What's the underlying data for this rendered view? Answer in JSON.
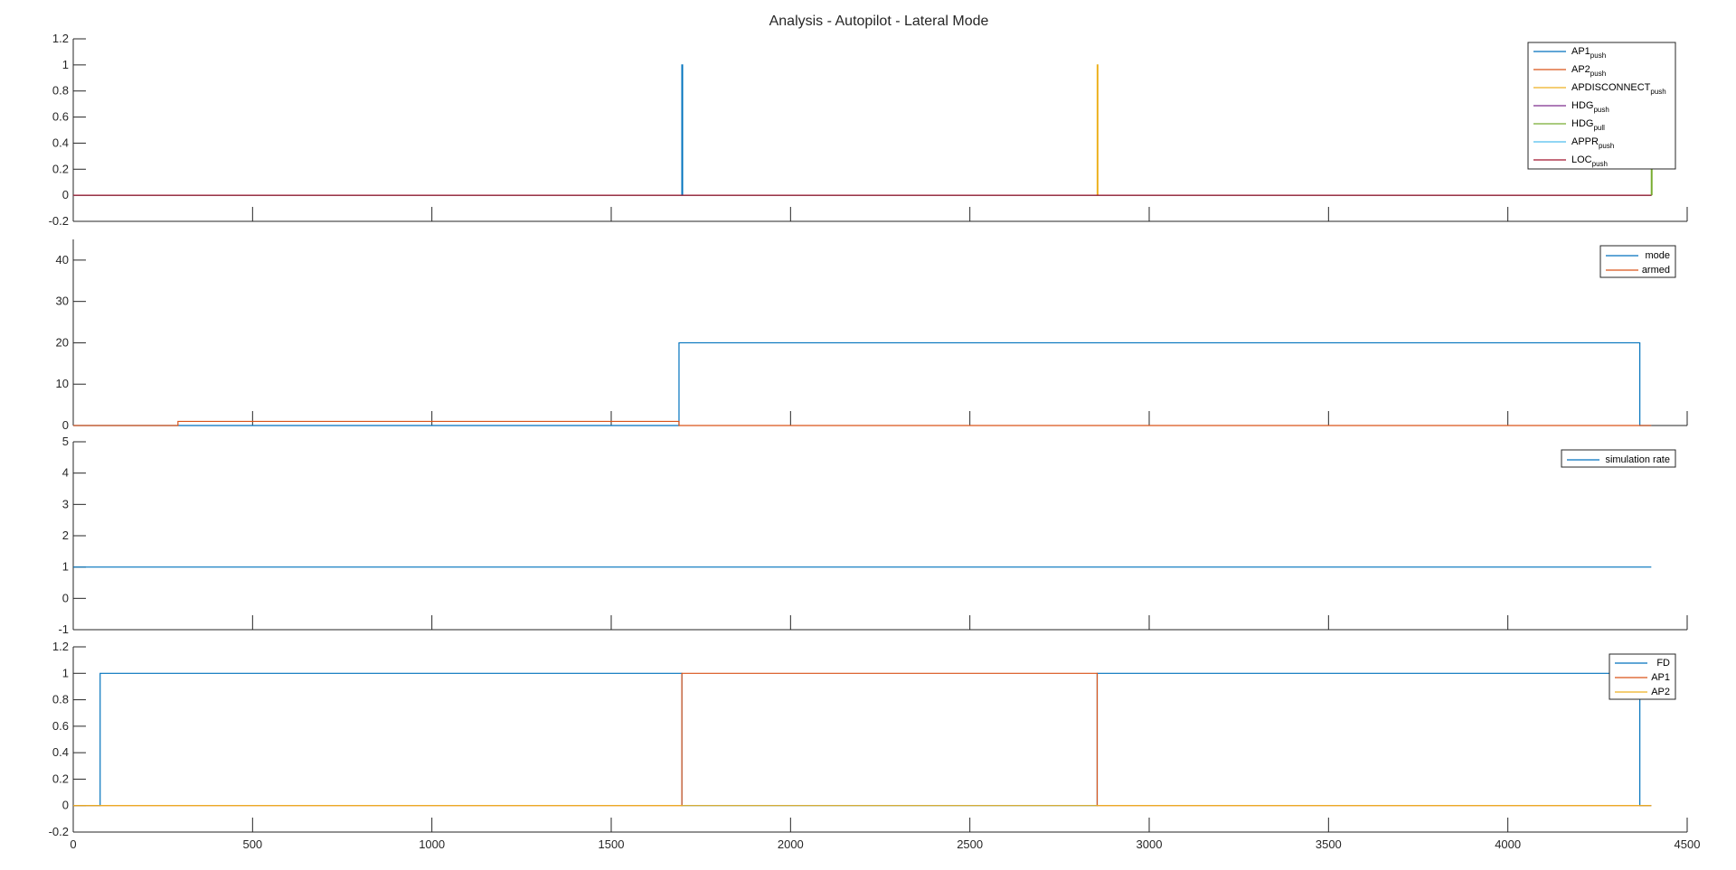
{
  "figure": {
    "title": "Analysis - Autopilot - Lateral Mode"
  },
  "chart_data": [
    {
      "type": "line",
      "xlim": [
        0,
        4500
      ],
      "ylim": [
        -0.2,
        1.2
      ],
      "yticks": [
        "-0.2",
        "0",
        "0.2",
        "0.4",
        "0.6",
        "0.8",
        "1",
        "1.2"
      ],
      "ytick_values": [
        -0.2,
        0,
        0.2,
        0.4,
        0.6,
        0.8,
        1,
        1.2
      ],
      "xticks": [
        0,
        500,
        1000,
        1500,
        2000,
        2500,
        3000,
        3500,
        4000,
        4500
      ],
      "show_xtick_labels": false,
      "legend": "top-right",
      "series": [
        {
          "name": "AP1",
          "sub": "push",
          "color": "#0072BD",
          "x": [
            0,
            1697,
            1697,
            1699,
            1699,
            4400
          ],
          "y": [
            0,
            0,
            1,
            1,
            0,
            0
          ]
        },
        {
          "name": "AP2",
          "sub": "push",
          "color": "#D95319",
          "x": [
            0,
            4400
          ],
          "y": [
            0,
            0
          ]
        },
        {
          "name": "APDISCONNECT",
          "sub": "push",
          "color": "#EDB120",
          "x": [
            0,
            2855,
            2855,
            2857,
            2857,
            4400
          ],
          "y": [
            0,
            0,
            1,
            1,
            0,
            0
          ]
        },
        {
          "name": "HDG",
          "sub": "push",
          "color": "#7E2F8E",
          "x": [
            0,
            4400
          ],
          "y": [
            0,
            0
          ]
        },
        {
          "name": "HDG",
          "sub": "pull",
          "color": "#77AC30",
          "x": [
            0,
            4400,
            4400,
            4402,
            4402
          ],
          "y": [
            0,
            0,
            0.2,
            0.2,
            0
          ]
        },
        {
          "name": "APPR",
          "sub": "push",
          "color": "#4DBEEE",
          "x": [
            0,
            4400
          ],
          "y": [
            0,
            0
          ]
        },
        {
          "name": "LOC",
          "sub": "push",
          "color": "#A2142F",
          "x": [
            0,
            4400
          ],
          "y": [
            0,
            0
          ]
        }
      ]
    },
    {
      "type": "line",
      "xlim": [
        0,
        4500
      ],
      "ylim": [
        0,
        45
      ],
      "yticks": [
        "0",
        "10",
        "20",
        "30",
        "40"
      ],
      "ytick_values": [
        0,
        10,
        20,
        30,
        40
      ],
      "xticks": [
        0,
        500,
        1000,
        1500,
        2000,
        2500,
        3000,
        3500,
        4000,
        4500
      ],
      "show_xtick_labels": false,
      "legend": "top-right",
      "series": [
        {
          "name": "mode",
          "sub": "",
          "color": "#0072BD",
          "x": [
            0,
            1689,
            1689,
            4368,
            4368,
            4400
          ],
          "y": [
            0,
            0,
            20,
            20,
            0,
            0
          ]
        },
        {
          "name": "armed",
          "sub": "",
          "color": "#D95319",
          "x": [
            0,
            292,
            292,
            1689,
            1689,
            4400
          ],
          "y": [
            0,
            0,
            1,
            1,
            0,
            0
          ]
        }
      ]
    },
    {
      "type": "line",
      "xlim": [
        0,
        4500
      ],
      "ylim": [
        -1,
        5
      ],
      "yticks": [
        "-1",
        "0",
        "1",
        "2",
        "3",
        "4",
        "5"
      ],
      "ytick_values": [
        -1,
        0,
        1,
        2,
        3,
        4,
        5
      ],
      "xticks": [
        0,
        500,
        1000,
        1500,
        2000,
        2500,
        3000,
        3500,
        4000,
        4500
      ],
      "show_xtick_labels": false,
      "legend": "top-right",
      "series": [
        {
          "name": "simulation rate",
          "sub": "",
          "color": "#0072BD",
          "x": [
            0,
            4400
          ],
          "y": [
            1,
            1
          ]
        }
      ]
    },
    {
      "type": "line",
      "xlim": [
        0,
        4500
      ],
      "ylim": [
        -0.2,
        1.2
      ],
      "yticks": [
        "-0.2",
        "0",
        "0.2",
        "0.4",
        "0.6",
        "0.8",
        "1",
        "1.2"
      ],
      "ytick_values": [
        -0.2,
        0,
        0.2,
        0.4,
        0.6,
        0.8,
        1,
        1.2
      ],
      "xticks": [
        0,
        500,
        1000,
        1500,
        2000,
        2500,
        3000,
        3500,
        4000,
        4500
      ],
      "xtick_labels": [
        "0",
        "500",
        "1000",
        "1500",
        "2000",
        "2500",
        "3000",
        "3500",
        "4000",
        "4500"
      ],
      "show_xtick_labels": true,
      "legend": "top-right",
      "series": [
        {
          "name": "FD",
          "sub": "",
          "color": "#0072BD",
          "x": [
            0,
            75,
            75,
            1697,
            1697,
            2855,
            2855,
            4368,
            4368,
            4400
          ],
          "y": [
            0,
            0,
            1,
            1,
            0,
            0,
            1,
            1,
            0,
            0
          ]
        },
        {
          "name": "AP1",
          "sub": "",
          "color": "#D95319",
          "x": [
            0,
            1697,
            1697,
            2855,
            2855,
            4400
          ],
          "y": [
            0,
            0,
            1,
            1,
            0,
            0
          ]
        },
        {
          "name": "AP2",
          "sub": "",
          "color": "#EDB120",
          "x": [
            0,
            4400
          ],
          "y": [
            0,
            0
          ]
        }
      ]
    }
  ]
}
